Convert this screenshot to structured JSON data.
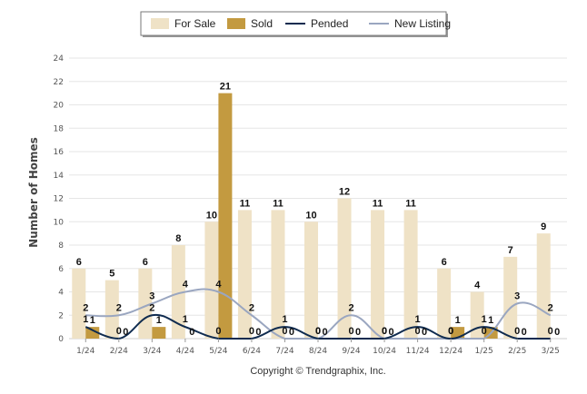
{
  "chart_data": {
    "type": "bar",
    "categories": [
      "1/24",
      "2/24",
      "3/24",
      "4/24",
      "5/24",
      "6/24",
      "7/24",
      "8/24",
      "9/24",
      "10/24",
      "11/24",
      "12/24",
      "1/25",
      "2/25",
      "3/25"
    ],
    "series": [
      {
        "name": "For Sale",
        "kind": "bar",
        "color": "#efe2c6",
        "values": [
          6,
          5,
          6,
          8,
          10,
          11,
          11,
          10,
          12,
          11,
          11,
          6,
          4,
          7,
          9
        ]
      },
      {
        "name": "Sold",
        "kind": "bar",
        "color": "#c39a40",
        "values": [
          1,
          0,
          1,
          0,
          21,
          0,
          0,
          0,
          0,
          0,
          0,
          1,
          1,
          0,
          0
        ]
      },
      {
        "name": "Pended",
        "kind": "line",
        "color": "#0f2b4f",
        "values": [
          1,
          0,
          2,
          1,
          0,
          0,
          1,
          0,
          0,
          0,
          1,
          0,
          1,
          0,
          0
        ]
      },
      {
        "name": "New Listing",
        "kind": "line",
        "color": "#9aa6c0",
        "values": [
          2,
          2,
          3,
          4,
          4,
          2,
          0,
          0,
          2,
          0,
          0,
          0,
          0,
          3,
          2
        ]
      }
    ],
    "ylabel": "Number of Homes",
    "xlabel": "",
    "ylim": [
      0,
      24
    ],
    "yticks": [
      0,
      2,
      4,
      6,
      8,
      10,
      12,
      14,
      16,
      18,
      20,
      22,
      24
    ],
    "grid": true,
    "legend_position": "top"
  },
  "footer": "Copyright © Trendgraphix, Inc."
}
